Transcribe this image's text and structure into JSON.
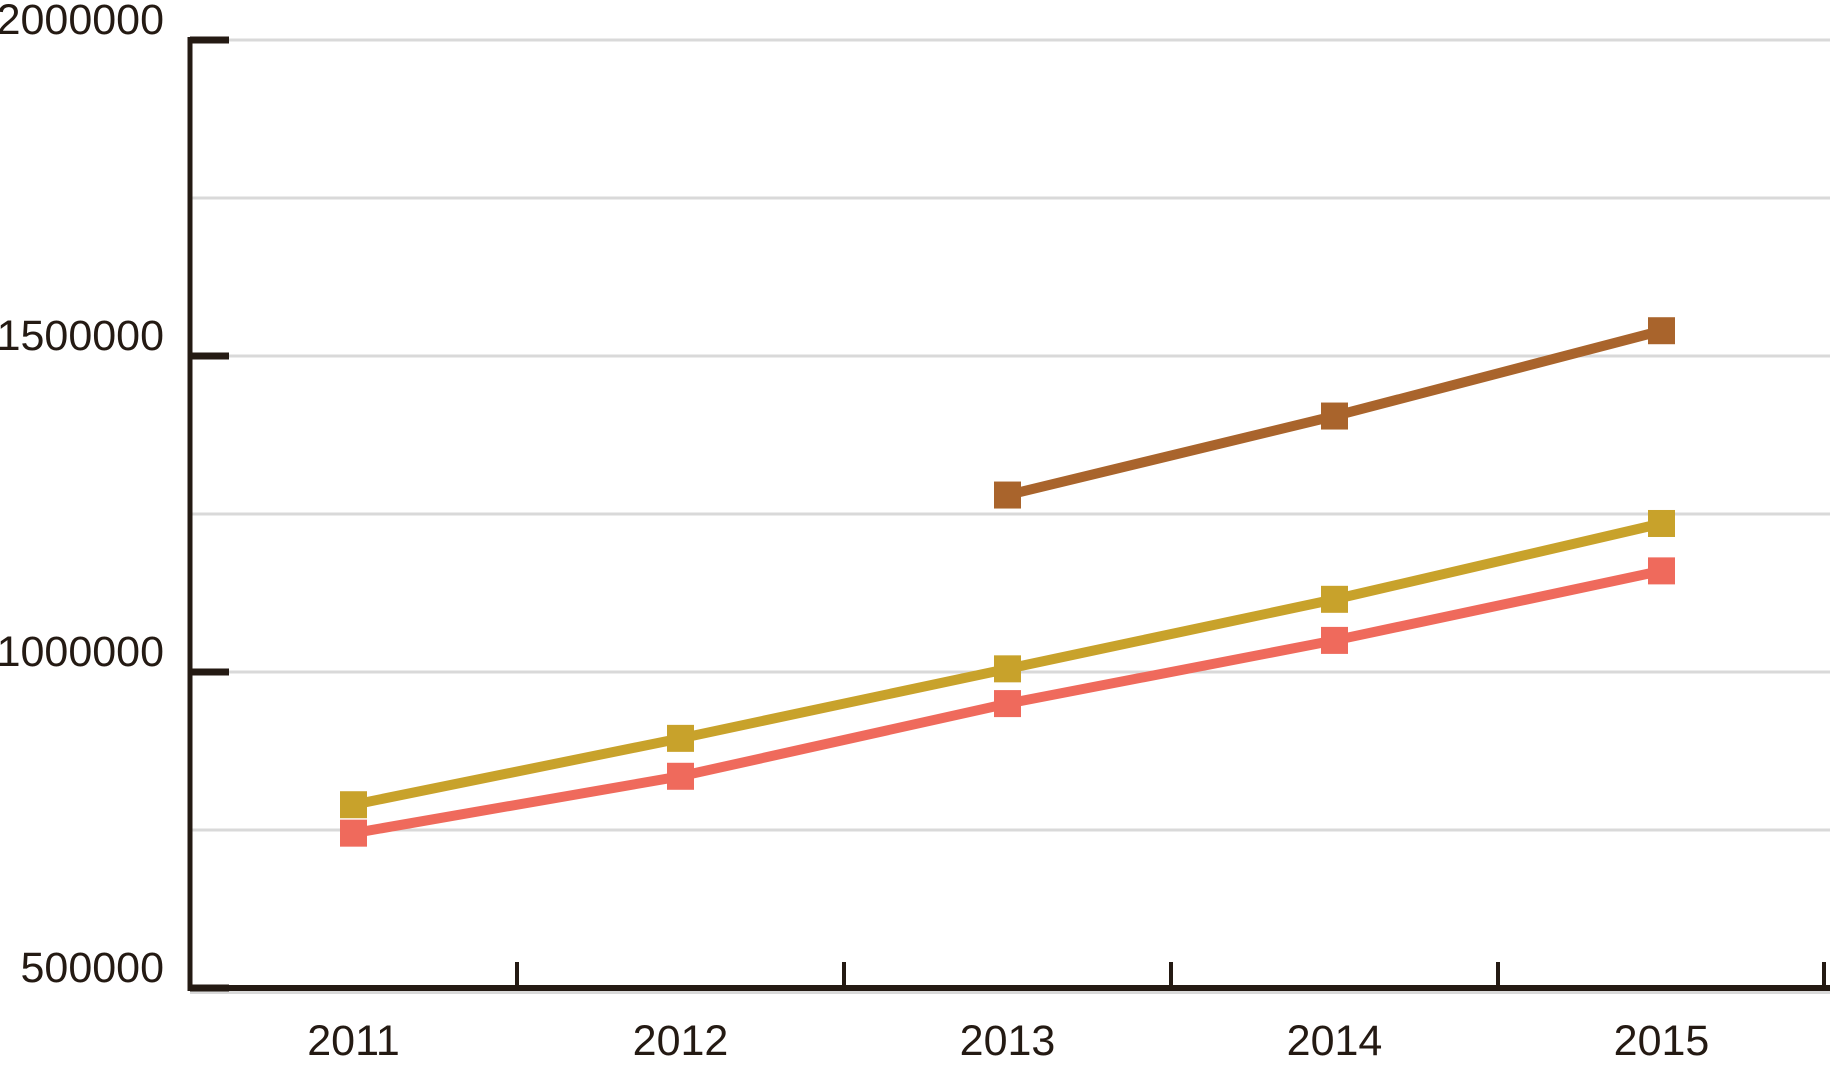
{
  "chart_data": {
    "type": "line",
    "title": "",
    "xlabel": "",
    "ylabel": "",
    "categories": [
      "2011",
      "2012",
      "2013",
      "2014",
      "2015"
    ],
    "series": [
      {
        "key": "coral",
        "color": "#EF6A5C",
        "marker": "square",
        "values": [
          745000,
          835000,
          950000,
          1050000,
          1160000
        ]
      },
      {
        "key": "gold",
        "color": "#C8A22B",
        "marker": "square",
        "values": [
          790000,
          895000,
          1005000,
          1115000,
          1235000
        ]
      },
      {
        "key": "brown",
        "color": "#A9642C",
        "marker": "square",
        "values": [
          null,
          null,
          1280000,
          1405000,
          1540000
        ]
      }
    ],
    "ylim": [
      500000,
      2000000
    ],
    "y_ticks": [
      500000,
      1000000,
      1500000,
      2000000
    ],
    "y_tick_labels": [
      "500000",
      "1000000",
      "1500000",
      "2000000"
    ],
    "gridline_interval": 250000,
    "grid": true,
    "legend_position": "none"
  },
  "styles": {
    "background_color": "#ffffff",
    "axis_color": "#241a13",
    "text_color": "#241a13",
    "gridline_color": "#d9d9d9"
  }
}
